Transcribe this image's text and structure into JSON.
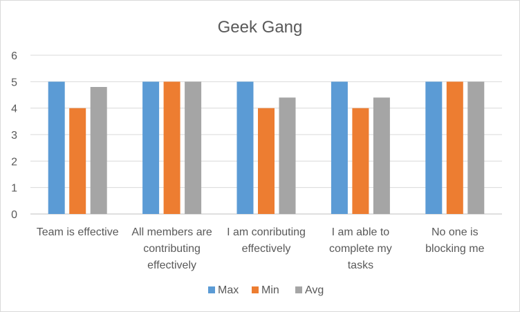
{
  "chart_data": {
    "type": "bar",
    "title": "Geek Gang",
    "categories": [
      [
        "Team is effective"
      ],
      [
        "All members are",
        "contributing",
        "effectively"
      ],
      [
        "I am conributing",
        "effectively"
      ],
      [
        "I am able to",
        "complete my",
        "tasks"
      ],
      [
        "No one is",
        "blocking me"
      ]
    ],
    "series": [
      {
        "name": "Max",
        "color": "#5b9bd5",
        "values": [
          5,
          5,
          5,
          5,
          5
        ]
      },
      {
        "name": "Min",
        "color": "#ed7d31",
        "values": [
          4,
          5,
          4,
          4,
          5
        ]
      },
      {
        "name": "Avg",
        "color": "#a5a5a5",
        "values": [
          4.8,
          5,
          4.4,
          4.4,
          5
        ]
      }
    ],
    "ylim": [
      0,
      6
    ],
    "yticks": [
      0,
      1,
      2,
      3,
      4,
      5,
      6
    ],
    "grid": true,
    "legend": "bottom"
  }
}
